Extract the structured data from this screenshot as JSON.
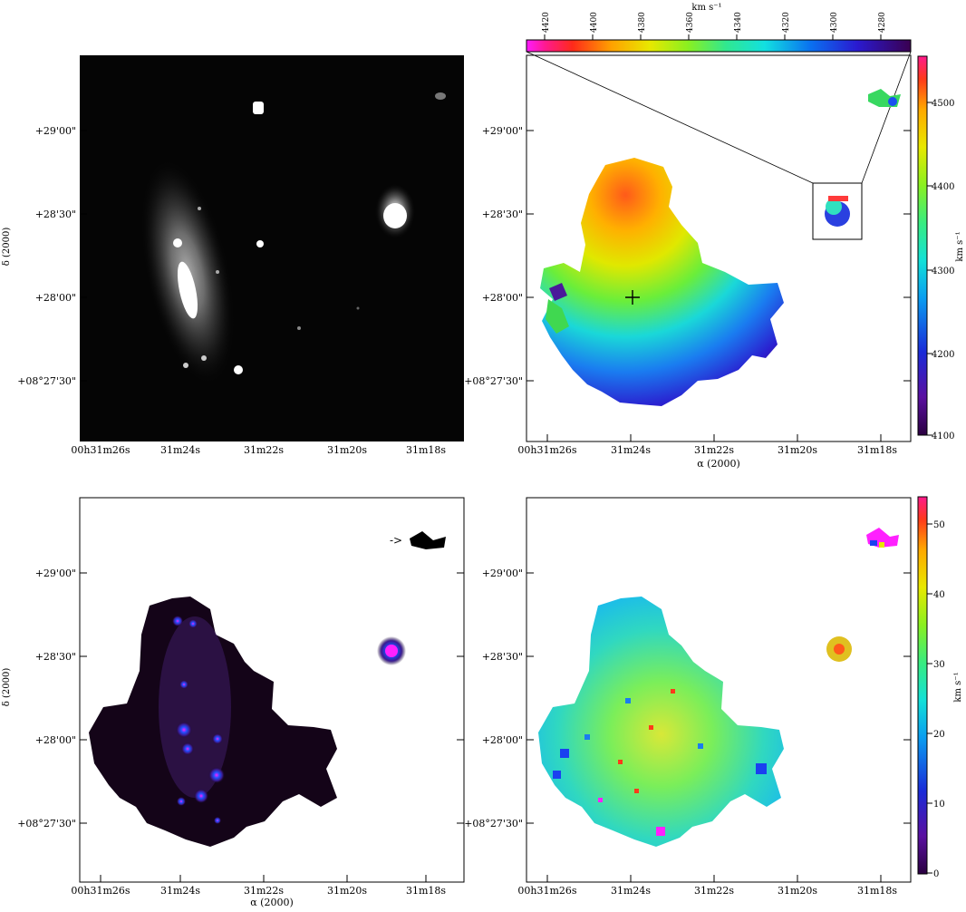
{
  "panels": {
    "top_left": {
      "y_ticks": [
        "+29'00\"",
        "+28'30\"",
        "+28'00\"",
        "+08°27'30\""
      ],
      "x_ticks": [
        "00h31m26s",
        "31m24s",
        "31m22s",
        "31m20s",
        "31m18s"
      ],
      "ylabel": "δ (2000)"
    },
    "top_right": {
      "y_ticks": [
        "+29'00\"",
        "+28'30\"",
        "+28'00\"",
        "+08°27'30\""
      ],
      "x_ticks": [
        "00h31m26s",
        "31m24s",
        "31m22s",
        "31m20s",
        "31m18s"
      ],
      "xlabel": "α (2000)"
    },
    "bottom_left": {
      "y_ticks": [
        "+29'00\"",
        "+28'30\"",
        "+28'00\"",
        "+08°27'30\""
      ],
      "x_ticks": [
        "00h31m26s",
        "31m24s",
        "31m22s",
        "31m20s",
        "31m18s"
      ],
      "xlabel": "α (2000)",
      "ylabel": "δ (2000)",
      "arrow_text": "->"
    },
    "bottom_right": {
      "y_ticks": [
        "+29'00\"",
        "+28'30\"",
        "+28'00\"",
        "+08°27'30\""
      ],
      "x_ticks": [
        "00h31m26s",
        "31m24s",
        "31m22s",
        "31m20s",
        "31m18s"
      ]
    }
  },
  "colorbars": {
    "top_inset": {
      "unit": "km s⁻¹",
      "ticks": [
        "4420",
        "4400",
        "4380",
        "4360",
        "4340",
        "4320",
        "4300",
        "4280"
      ]
    },
    "velocity": {
      "unit": "km s⁻¹",
      "ticks": [
        "4500",
        "4400",
        "4300",
        "4200",
        "4100"
      ]
    },
    "dispersion": {
      "unit": "km s⁻¹",
      "ticks": [
        "50",
        "40",
        "30",
        "20",
        "10",
        "0"
      ]
    }
  },
  "colors": {
    "rainbow": [
      "#3a0055",
      "#5a10a0",
      "#1a2bd8",
      "#0a9cf0",
      "#12e0d8",
      "#38ec80",
      "#8af020",
      "#e8e800",
      "#ffa800",
      "#ff3a1a",
      "#ff1a8c"
    ]
  }
}
